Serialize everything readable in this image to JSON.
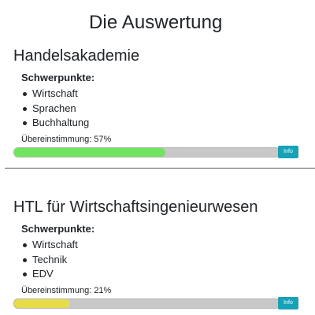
{
  "page_title": "Die Auswertung",
  "colors": {
    "progress_track": "#c8c8c8",
    "info_button": "#17a2b8",
    "fill_green": "#6ee55c",
    "fill_yellow": "#e6dc48"
  },
  "schools": [
    {
      "name": "Handelsakademie",
      "focus_label": "Schwerpunkte:",
      "focus_items": [
        "Wirtschaft",
        "Sprachen",
        "Buchhaltung"
      ],
      "match_label": "Übereinstimmung:",
      "match_text": "57%",
      "match_fraction": 0.57,
      "fill_color": "#6ee55c",
      "info_label": "Info"
    },
    {
      "name": "HTL für Wirtschaftsingenieurwesen",
      "focus_label": "Schwerpunkte:",
      "focus_items": [
        "Wirtschaft",
        "Technik",
        "EDV"
      ],
      "match_label": "Übereinstimmung:",
      "match_text": "21%",
      "match_fraction": 0.21,
      "fill_color": "#e6dc48",
      "info_label": "Info"
    }
  ]
}
